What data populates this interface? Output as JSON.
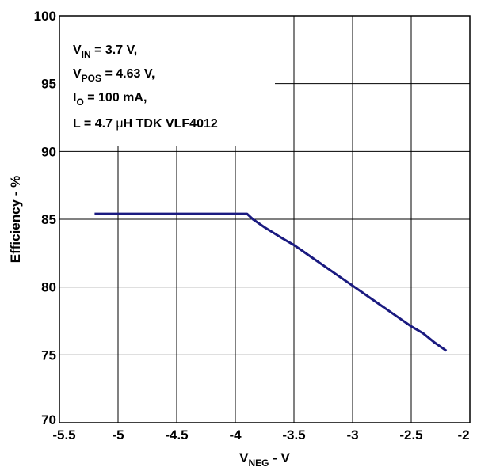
{
  "chart_data": {
    "type": "line",
    "title": "",
    "xlabel": {
      "main": "V",
      "sub": "NEG",
      "suffix": " - V"
    },
    "ylabel": "Efficiency - %",
    "xlim": [
      -5.5,
      -2
    ],
    "ylim": [
      70,
      100
    ],
    "x_ticks": [
      -5.5,
      -5,
      -4.5,
      -4,
      -3.5,
      -3,
      -2.5,
      -2
    ],
    "x_tick_labels": [
      "-5.5",
      "-5",
      "-4.5",
      "-4",
      "-3.5",
      "-3",
      "-2.5",
      "-2"
    ],
    "y_ticks": [
      70,
      75,
      80,
      85,
      90,
      95,
      100
    ],
    "y_tick_labels": [
      "70",
      "75",
      "80",
      "85",
      "90",
      "95",
      "100"
    ],
    "grid": true,
    "series": [
      {
        "color": "#1a1a80",
        "x": [
          -5.2,
          -3.9,
          -3.85,
          -3.75,
          -3.6,
          -3.5,
          -3.3,
          -3.1,
          -3.0,
          -2.8,
          -2.6,
          -2.5,
          -2.4,
          -2.3,
          -2.2
        ],
        "y": [
          85.4,
          85.4,
          85.0,
          84.4,
          83.6,
          83.1,
          81.9,
          80.7,
          80.1,
          78.9,
          77.7,
          77.1,
          76.6,
          75.9,
          75.3
        ]
      }
    ],
    "annotation_lines": [
      {
        "main": "V",
        "sub": "IN",
        "rest": " = 3.7 V,"
      },
      {
        "main": "V",
        "sub": "POS",
        "rest": " = 4.63 V,"
      },
      {
        "main": "I",
        "sub": "O",
        "rest": " = 100 mA,"
      },
      {
        "main": "L = 4.7 ",
        "sub": "",
        "rest": "",
        "mu": "μ",
        "after_mu": "H TDK VLF4012"
      }
    ]
  }
}
